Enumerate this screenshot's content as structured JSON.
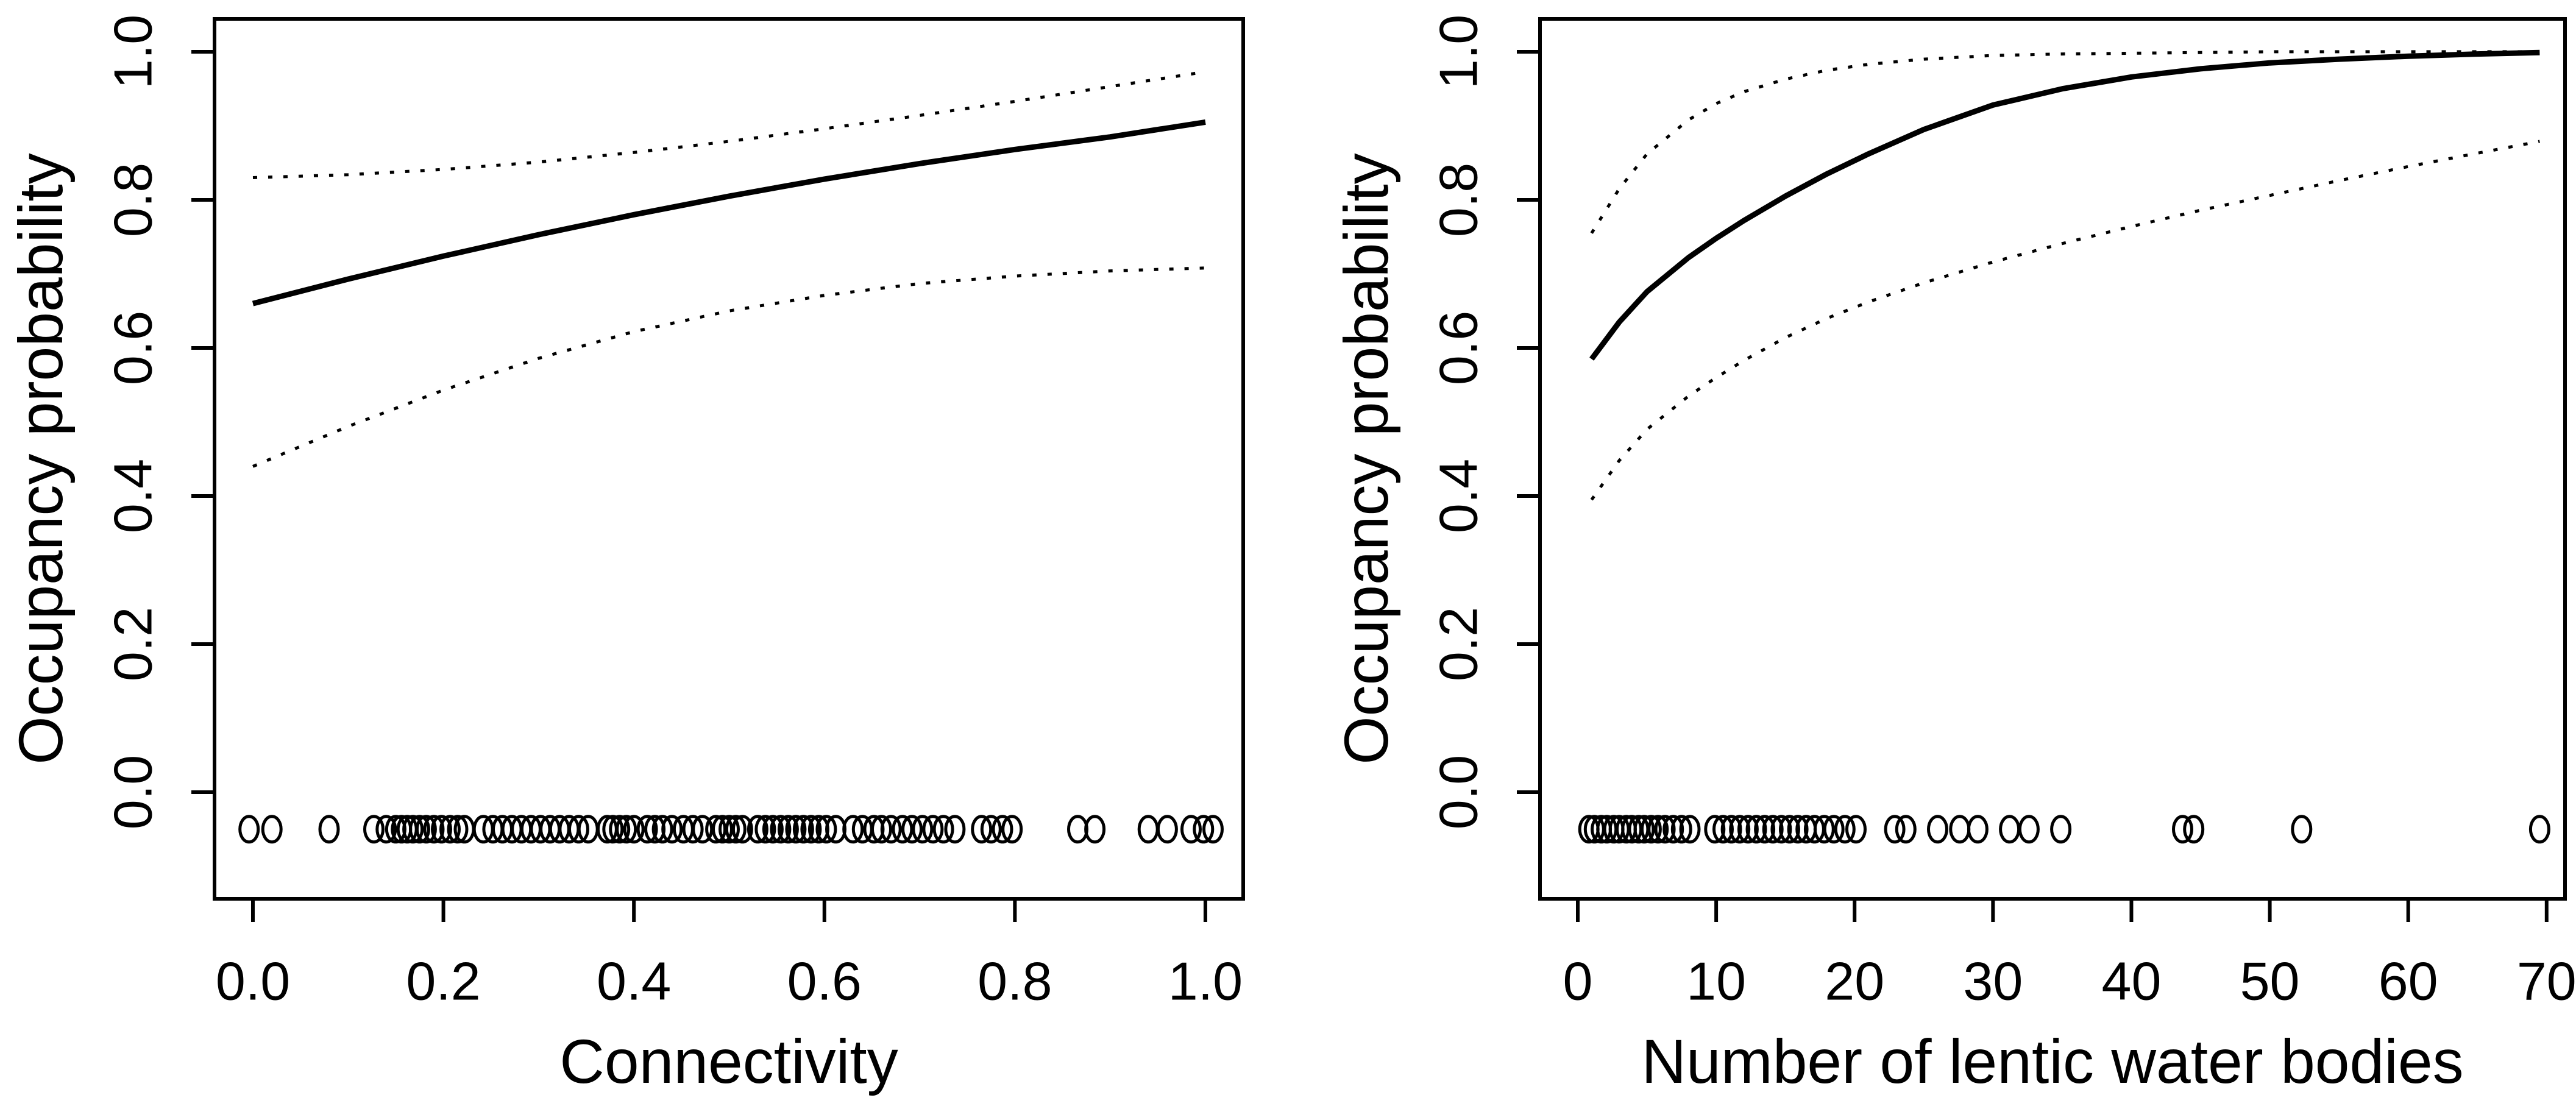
{
  "figure": {
    "background_color": "#ffffff",
    "ink_color": "#000000",
    "description": "Two-panel occupancy model plot with 95% confidence bands and observation rug"
  },
  "chart_data": [
    {
      "id": "connectivity-panel",
      "type": "line",
      "title": "",
      "xlabel": "Connectivity",
      "ylabel": "Occupancy probability",
      "xlim": [
        -0.0403,
        1.0397
      ],
      "ylim": [
        -0.144,
        1.0444
      ],
      "grid": false,
      "legend": "none",
      "x_ticks": [
        {
          "value": 0.0,
          "label": "0.0"
        },
        {
          "value": 0.2,
          "label": "0.2"
        },
        {
          "value": 0.4,
          "label": "0.4"
        },
        {
          "value": 0.6,
          "label": "0.6"
        },
        {
          "value": 0.8,
          "label": "0.8"
        },
        {
          "value": 1.0,
          "label": "1.0"
        }
      ],
      "y_ticks": [
        {
          "value": 0.0,
          "label": "0.0"
        },
        {
          "value": 0.2,
          "label": "0.2"
        },
        {
          "value": 0.4,
          "label": "0.4"
        },
        {
          "value": 0.6,
          "label": "0.6"
        },
        {
          "value": 0.8,
          "label": "0.8"
        },
        {
          "value": 1.0,
          "label": "1.0"
        }
      ],
      "series": [
        {
          "name": "mean-occupancy",
          "style": "solid",
          "x": [
            0.0,
            0.1,
            0.2,
            0.3,
            0.4,
            0.5,
            0.6,
            0.7,
            0.8,
            0.9,
            1.0
          ],
          "y": [
            0.66,
            0.693,
            0.724,
            0.753,
            0.78,
            0.805,
            0.828,
            0.849,
            0.868,
            0.885,
            0.905
          ]
        },
        {
          "name": "upper-95ci",
          "style": "dotted",
          "x": [
            0.0,
            0.1,
            0.2,
            0.3,
            0.4,
            0.5,
            0.6,
            0.7,
            0.8,
            0.9,
            1.0
          ],
          "y": [
            0.83,
            0.834,
            0.841,
            0.851,
            0.864,
            0.879,
            0.896,
            0.914,
            0.933,
            0.953,
            0.973
          ]
        },
        {
          "name": "lower-95ci",
          "style": "dotted",
          "x": [
            0.0,
            0.1,
            0.2,
            0.3,
            0.4,
            0.5,
            0.6,
            0.7,
            0.8,
            0.9,
            1.0
          ],
          "y": [
            0.44,
            0.494,
            0.543,
            0.586,
            0.622,
            0.65,
            0.671,
            0.687,
            0.697,
            0.704,
            0.708
          ]
        }
      ],
      "rug": {
        "name": "observed-sites",
        "y": -0.05,
        "x": [
          -0.004,
          0.02,
          0.08,
          0.127,
          0.14,
          0.15,
          0.156,
          0.162,
          0.168,
          0.175,
          0.182,
          0.19,
          0.198,
          0.207,
          0.215,
          0.222,
          0.242,
          0.252,
          0.262,
          0.272,
          0.282,
          0.292,
          0.302,
          0.312,
          0.322,
          0.332,
          0.342,
          0.352,
          0.372,
          0.378,
          0.385,
          0.392,
          0.4,
          0.414,
          0.422,
          0.43,
          0.44,
          0.452,
          0.462,
          0.472,
          0.486,
          0.493,
          0.5,
          0.507,
          0.514,
          0.53,
          0.538,
          0.546,
          0.554,
          0.562,
          0.57,
          0.578,
          0.586,
          0.594,
          0.602,
          0.612,
          0.63,
          0.64,
          0.652,
          0.66,
          0.67,
          0.682,
          0.692,
          0.703,
          0.714,
          0.725,
          0.737,
          0.765,
          0.775,
          0.787,
          0.797,
          0.866,
          0.884,
          0.94,
          0.96,
          0.985,
          0.998,
          1.008
        ]
      }
    },
    {
      "id": "lentic-water-bodies-panel",
      "type": "line",
      "title": "",
      "xlabel": "Number of lentic water bodies",
      "ylabel": "Occupancy probability",
      "xlim": [
        -2.73,
        71.33
      ],
      "ylim": [
        -0.144,
        1.0444
      ],
      "grid": false,
      "legend": "none",
      "x_ticks": [
        {
          "value": 0,
          "label": "0"
        },
        {
          "value": 10,
          "label": "10"
        },
        {
          "value": 20,
          "label": "20"
        },
        {
          "value": 30,
          "label": "30"
        },
        {
          "value": 40,
          "label": "40"
        },
        {
          "value": 50,
          "label": "50"
        },
        {
          "value": 60,
          "label": "60"
        },
        {
          "value": 70,
          "label": "70"
        }
      ],
      "y_ticks": [
        {
          "value": 0.0,
          "label": "0.0"
        },
        {
          "value": 0.2,
          "label": "0.2"
        },
        {
          "value": 0.4,
          "label": "0.4"
        },
        {
          "value": 0.6,
          "label": "0.6"
        },
        {
          "value": 0.8,
          "label": "0.8"
        },
        {
          "value": 1.0,
          "label": "1.0"
        }
      ],
      "series": [
        {
          "name": "mean-occupancy",
          "style": "solid",
          "x": [
            1,
            3,
            5,
            8,
            10,
            12,
            15,
            18,
            21,
            25,
            30,
            35,
            40,
            45,
            50,
            55,
            60,
            65,
            69.5
          ],
          "y": [
            0.585,
            0.635,
            0.676,
            0.722,
            0.748,
            0.772,
            0.805,
            0.835,
            0.862,
            0.895,
            0.928,
            0.95,
            0.966,
            0.977,
            0.985,
            0.99,
            0.994,
            0.997,
            0.999
          ]
        },
        {
          "name": "upper-95ci",
          "style": "dotted",
          "x": [
            1,
            3,
            5,
            8,
            10,
            12,
            15,
            18,
            21,
            25,
            30,
            35,
            40,
            45,
            50,
            55,
            60,
            65,
            69.5
          ],
          "y": [
            0.755,
            0.815,
            0.862,
            0.908,
            0.93,
            0.946,
            0.963,
            0.975,
            0.983,
            0.99,
            0.995,
            0.997,
            0.998,
            0.999,
            1.0,
            1.0,
            1.0,
            1.0,
            1.0
          ]
        },
        {
          "name": "lower-95ci",
          "style": "dotted",
          "x": [
            1,
            3,
            5,
            8,
            10,
            12,
            15,
            18,
            21,
            25,
            30,
            35,
            40,
            45,
            50,
            55,
            60,
            65,
            69.5
          ],
          "y": [
            0.395,
            0.448,
            0.49,
            0.535,
            0.56,
            0.583,
            0.614,
            0.64,
            0.662,
            0.688,
            0.716,
            0.741,
            0.764,
            0.786,
            0.806,
            0.826,
            0.845,
            0.863,
            0.879
          ]
        }
      ],
      "rug": {
        "name": "observed-sites",
        "y": -0.05,
        "x": [
          0.8,
          1.2,
          1.7,
          2.1,
          2.6,
          3.0,
          3.5,
          3.9,
          4.4,
          4.8,
          5.3,
          5.8,
          6.3,
          6.9,
          7.5,
          8.1,
          9.9,
          10.5,
          11.1,
          11.7,
          12.3,
          12.9,
          13.5,
          14.1,
          14.7,
          15.3,
          15.9,
          16.5,
          17.1,
          17.8,
          18.5,
          19.3,
          20.1,
          22.9,
          23.7,
          26.0,
          27.6,
          28.9,
          31.2,
          32.6,
          34.9,
          43.7,
          44.5,
          52.3,
          69.5
        ]
      }
    }
  ]
}
